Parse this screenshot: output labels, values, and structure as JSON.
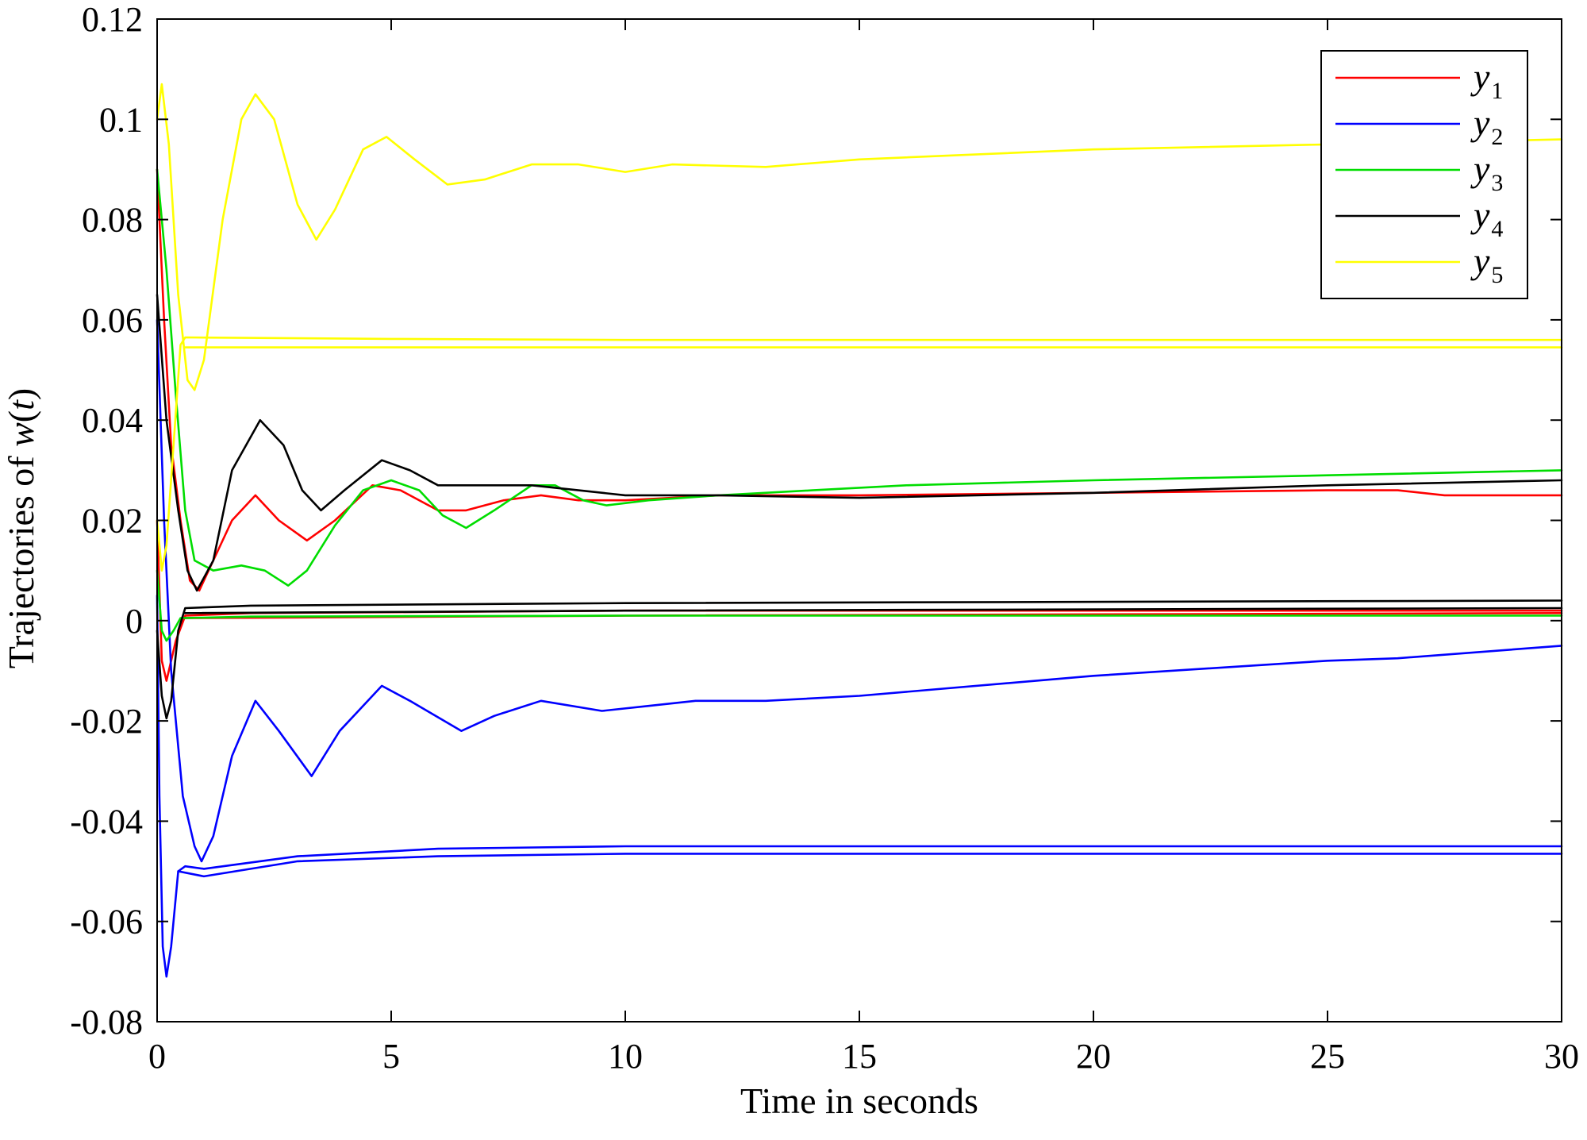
{
  "chart_data": {
    "type": "line",
    "title": "",
    "xlabel": "Time in seconds",
    "ylabel_prefix": "Trajectories of ",
    "ylabel_var": "w",
    "ylabel_arg": "t",
    "xlim": [
      0,
      30
    ],
    "ylim": [
      -0.08,
      0.12
    ],
    "xticks": [
      0,
      5,
      10,
      15,
      20,
      25,
      30
    ],
    "xtick_labels": [
      "0",
      "5",
      "10",
      "15",
      "20",
      "25",
      "30"
    ],
    "yticks": [
      -0.08,
      -0.06,
      -0.04,
      -0.02,
      0,
      0.02,
      0.04,
      0.06,
      0.08,
      0.1,
      0.12
    ],
    "ytick_labels": [
      "-0.08",
      "-0.06",
      "-0.04",
      "-0.02",
      "0",
      "0.02",
      "0.04",
      "0.06",
      "0.08",
      "0.1",
      "0.12"
    ],
    "grid": false,
    "legend_position": "top-right",
    "series": [
      {
        "name": "y1",
        "legend_symbol": "y",
        "legend_subscript": "1",
        "color": "#ff0000",
        "lines": [
          [
            [
              0,
              0.09
            ],
            [
              0.15,
              0.06
            ],
            [
              0.3,
              0.035
            ],
            [
              0.5,
              0.02
            ],
            [
              0.7,
              0.008
            ],
            [
              0.9,
              0.006
            ],
            [
              1.2,
              0.012
            ],
            [
              1.6,
              0.02
            ],
            [
              2.1,
              0.025
            ],
            [
              2.6,
              0.02
            ],
            [
              3.2,
              0.016
            ],
            [
              3.8,
              0.02
            ],
            [
              4.6,
              0.027
            ],
            [
              5.2,
              0.026
            ],
            [
              6,
              0.022
            ],
            [
              6.6,
              0.022
            ],
            [
              7.4,
              0.024
            ],
            [
              8.2,
              0.025
            ],
            [
              9,
              0.024
            ],
            [
              10,
              0.024
            ],
            [
              12,
              0.025
            ],
            [
              15,
              0.025
            ],
            [
              20,
              0.0255
            ],
            [
              25,
              0.026
            ],
            [
              26.5,
              0.026
            ],
            [
              27.5,
              0.025
            ],
            [
              30,
              0.025
            ]
          ],
          [
            [
              0,
              0.02
            ],
            [
              0.1,
              -0.008
            ],
            [
              0.2,
              -0.012
            ],
            [
              0.4,
              -0.004
            ],
            [
              0.6,
              0.001
            ],
            [
              2,
              0.0015
            ],
            [
              10,
              0.002
            ],
            [
              20,
              0.002
            ],
            [
              30,
              0.002
            ]
          ],
          [
            [
              0.6,
              0.0005
            ],
            [
              10,
              0.001
            ],
            [
              30,
              0.0015
            ]
          ]
        ]
      },
      {
        "name": "y2",
        "legend_symbol": "y",
        "legend_subscript": "2",
        "color": "#0000ff",
        "lines": [
          [
            [
              0,
              0.06
            ],
            [
              0.15,
              0.02
            ],
            [
              0.3,
              -0.01
            ],
            [
              0.55,
              -0.035
            ],
            [
              0.8,
              -0.045
            ],
            [
              0.95,
              -0.048
            ],
            [
              1.2,
              -0.043
            ],
            [
              1.6,
              -0.027
            ],
            [
              2.1,
              -0.016
            ],
            [
              2.6,
              -0.022
            ],
            [
              3.3,
              -0.031
            ],
            [
              3.9,
              -0.022
            ],
            [
              4.8,
              -0.013
            ],
            [
              5.4,
              -0.016
            ],
            [
              6.5,
              -0.022
            ],
            [
              7.2,
              -0.019
            ],
            [
              8.2,
              -0.016
            ],
            [
              9.5,
              -0.018
            ],
            [
              10.5,
              -0.017
            ],
            [
              11.5,
              -0.016
            ],
            [
              13,
              -0.016
            ],
            [
              15,
              -0.015
            ],
            [
              20,
              -0.011
            ],
            [
              25,
              -0.008
            ],
            [
              26.5,
              -0.0075
            ],
            [
              30,
              -0.005
            ]
          ],
          [
            [
              0,
              0.005
            ],
            [
              0.05,
              -0.035
            ],
            [
              0.12,
              -0.065
            ],
            [
              0.2,
              -0.071
            ],
            [
              0.3,
              -0.065
            ],
            [
              0.45,
              -0.05
            ],
            [
              0.6,
              -0.049
            ],
            [
              1,
              -0.0495
            ],
            [
              3,
              -0.047
            ],
            [
              6,
              -0.0455
            ],
            [
              10,
              -0.045
            ],
            [
              20,
              -0.045
            ],
            [
              30,
              -0.045
            ]
          ],
          [
            [
              0.45,
              -0.05
            ],
            [
              1,
              -0.051
            ],
            [
              3,
              -0.048
            ],
            [
              6,
              -0.047
            ],
            [
              10,
              -0.0465
            ],
            [
              20,
              -0.0465
            ],
            [
              30,
              -0.0465
            ]
          ]
        ]
      },
      {
        "name": "y3",
        "legend_symbol": "y",
        "legend_subscript": "3",
        "color": "#00dd00",
        "lines": [
          [
            [
              0,
              0.09
            ],
            [
              0.2,
              0.07
            ],
            [
              0.4,
              0.045
            ],
            [
              0.6,
              0.022
            ],
            [
              0.8,
              0.012
            ],
            [
              1.2,
              0.01
            ],
            [
              1.8,
              0.011
            ],
            [
              2.3,
              0.01
            ],
            [
              2.8,
              0.007
            ],
            [
              3.2,
              0.01
            ],
            [
              3.8,
              0.019
            ],
            [
              4.4,
              0.026
            ],
            [
              5,
              0.028
            ],
            [
              5.6,
              0.026
            ],
            [
              6.1,
              0.021
            ],
            [
              6.6,
              0.0185
            ],
            [
              7.2,
              0.022
            ],
            [
              8,
              0.027
            ],
            [
              8.5,
              0.027
            ],
            [
              9.1,
              0.024
            ],
            [
              9.6,
              0.023
            ],
            [
              10.5,
              0.024
            ],
            [
              12,
              0.025
            ],
            [
              14,
              0.026
            ],
            [
              16,
              0.027
            ],
            [
              20,
              0.028
            ],
            [
              25,
              0.029
            ],
            [
              30,
              0.03
            ]
          ],
          [
            [
              0,
              0.01
            ],
            [
              0.1,
              -0.002
            ],
            [
              0.2,
              -0.004
            ],
            [
              0.35,
              -0.002
            ],
            [
              0.5,
              0.0005
            ],
            [
              2,
              0.0008
            ],
            [
              10,
              0.001
            ],
            [
              30,
              0.001
            ]
          ]
        ]
      },
      {
        "name": "y4",
        "legend_symbol": "y",
        "legend_subscript": "4",
        "color": "#000000",
        "lines": [
          [
            [
              0,
              0.065
            ],
            [
              0.2,
              0.04
            ],
            [
              0.45,
              0.022
            ],
            [
              0.65,
              0.01
            ],
            [
              0.85,
              0.006
            ],
            [
              1.2,
              0.012
            ],
            [
              1.6,
              0.03
            ],
            [
              2.2,
              0.04
            ],
            [
              2.7,
              0.035
            ],
            [
              3.1,
              0.026
            ],
            [
              3.5,
              0.022
            ],
            [
              4,
              0.026
            ],
            [
              4.8,
              0.032
            ],
            [
              5.4,
              0.03
            ],
            [
              6,
              0.027
            ],
            [
              7,
              0.027
            ],
            [
              8,
              0.027
            ],
            [
              9,
              0.026
            ],
            [
              10,
              0.025
            ],
            [
              12,
              0.025
            ],
            [
              15,
              0.0245
            ],
            [
              20,
              0.0255
            ],
            [
              25,
              0.027
            ],
            [
              30,
              0.028
            ]
          ],
          [
            [
              0,
              -0.002
            ],
            [
              0.1,
              -0.015
            ],
            [
              0.2,
              -0.0195
            ],
            [
              0.3,
              -0.016
            ],
            [
              0.45,
              -0.002
            ],
            [
              0.6,
              0.0025
            ],
            [
              2,
              0.003
            ],
            [
              10,
              0.0035
            ],
            [
              30,
              0.004
            ]
          ],
          [
            [
              0.6,
              0.0015
            ],
            [
              10,
              0.002
            ],
            [
              30,
              0.0025
            ]
          ]
        ]
      },
      {
        "name": "y5",
        "legend_symbol": "y",
        "legend_subscript": "5",
        "color": "#ffff00",
        "lines": [
          [
            [
              0,
              0.1
            ],
            [
              0.1,
              0.107
            ],
            [
              0.25,
              0.095
            ],
            [
              0.45,
              0.065
            ],
            [
              0.65,
              0.048
            ],
            [
              0.8,
              0.046
            ],
            [
              1,
              0.052
            ],
            [
              1.4,
              0.08
            ],
            [
              1.8,
              0.1
            ],
            [
              2.1,
              0.105
            ],
            [
              2.5,
              0.1
            ],
            [
              3,
              0.083
            ],
            [
              3.4,
              0.076
            ],
            [
              3.8,
              0.082
            ],
            [
              4.4,
              0.094
            ],
            [
              4.9,
              0.0965
            ],
            [
              5.5,
              0.092
            ],
            [
              6.2,
              0.087
            ],
            [
              7,
              0.088
            ],
            [
              8,
              0.091
            ],
            [
              9,
              0.091
            ],
            [
              10,
              0.0895
            ],
            [
              11,
              0.091
            ],
            [
              13,
              0.0905
            ],
            [
              15,
              0.092
            ],
            [
              20,
              0.094
            ],
            [
              25,
              0.095
            ],
            [
              30,
              0.096
            ]
          ],
          [
            [
              0,
              0.02
            ],
            [
              0.1,
              0.01
            ],
            [
              0.2,
              0.015
            ],
            [
              0.35,
              0.035
            ],
            [
              0.5,
              0.055
            ],
            [
              0.6,
              0.0565
            ],
            [
              5,
              0.0562
            ],
            [
              10,
              0.056
            ],
            [
              20,
              0.056
            ],
            [
              30,
              0.056
            ]
          ],
          [
            [
              0.6,
              0.0545
            ],
            [
              10,
              0.0545
            ],
            [
              30,
              0.0545
            ]
          ]
        ]
      }
    ]
  }
}
